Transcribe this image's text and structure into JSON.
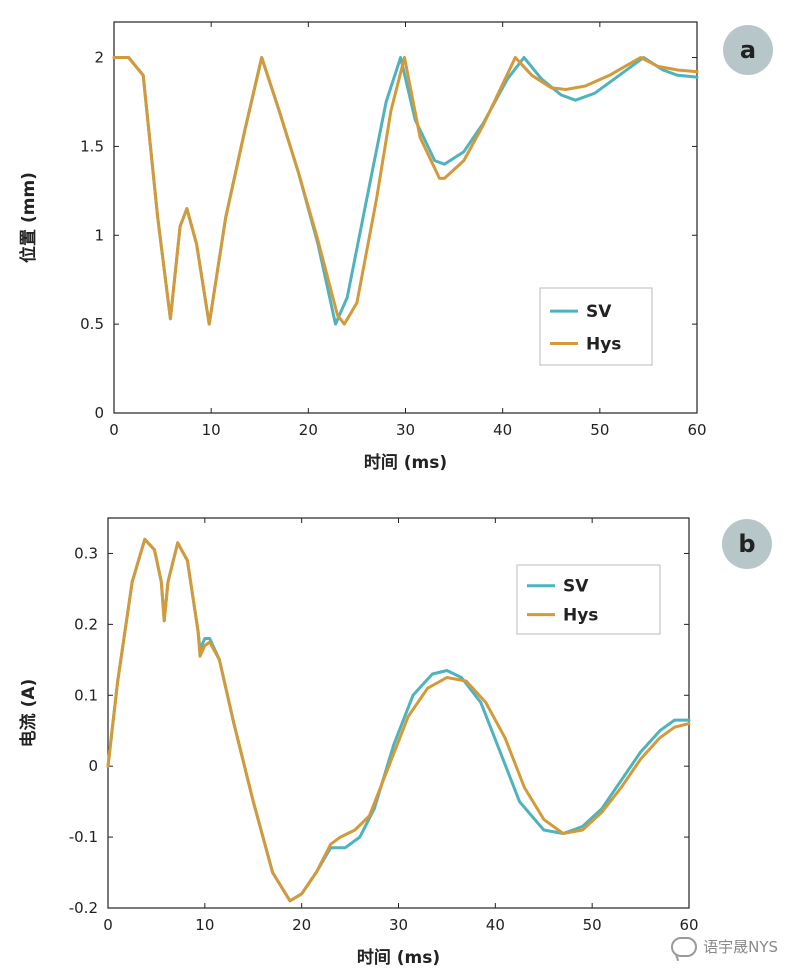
{
  "chart_data": [
    {
      "id": "a",
      "type": "line",
      "badge": "a",
      "xlabel": "时间 (ms)",
      "ylabel": "位置 (mm)",
      "xlim": [
        0,
        60
      ],
      "ylim": [
        0,
        2.2
      ],
      "xticks": [
        0,
        10,
        20,
        30,
        40,
        50,
        60
      ],
      "yticks": [
        0,
        0.5,
        1,
        1.5,
        2
      ],
      "ytick_labels": [
        "0",
        "0.5",
        "1",
        "1.5",
        "2"
      ],
      "grid": false,
      "legend_position": "lower-right",
      "series": [
        {
          "name": "SV",
          "color": "#4fb3bd",
          "points": [
            [
              0,
              2
            ],
            [
              1.5,
              2
            ],
            [
              3,
              1.9
            ],
            [
              4.5,
              1.1
            ],
            [
              5.8,
              0.53
            ],
            [
              6.8,
              1.05
            ],
            [
              7.5,
              1.15
            ],
            [
              8.5,
              0.95
            ],
            [
              9.8,
              0.5
            ],
            [
              11.5,
              1.1
            ],
            [
              13.5,
              1.6
            ],
            [
              15.2,
              2
            ],
            [
              17,
              1.7
            ],
            [
              19,
              1.35
            ],
            [
              21,
              0.95
            ],
            [
              22.8,
              0.5
            ],
            [
              24,
              0.65
            ],
            [
              26,
              1.2
            ],
            [
              28,
              1.75
            ],
            [
              29.5,
              2
            ],
            [
              31,
              1.65
            ],
            [
              33,
              1.42
            ],
            [
              34,
              1.4
            ],
            [
              36,
              1.47
            ],
            [
              38,
              1.63
            ],
            [
              40.5,
              1.88
            ],
            [
              42.2,
              2
            ],
            [
              44,
              1.88
            ],
            [
              46,
              1.79
            ],
            [
              47.5,
              1.76
            ],
            [
              49.5,
              1.8
            ],
            [
              52,
              1.9
            ],
            [
              54.5,
              2
            ],
            [
              56.5,
              1.93
            ],
            [
              58,
              1.9
            ],
            [
              60,
              1.89
            ]
          ]
        },
        {
          "name": "Hys",
          "color": "#d49a3a",
          "points": [
            [
              0,
              2
            ],
            [
              1.5,
              2
            ],
            [
              3,
              1.9
            ],
            [
              4.5,
              1.1
            ],
            [
              5.8,
              0.53
            ],
            [
              6.8,
              1.05
            ],
            [
              7.5,
              1.15
            ],
            [
              8.5,
              0.95
            ],
            [
              9.8,
              0.5
            ],
            [
              11.5,
              1.1
            ],
            [
              13.5,
              1.6
            ],
            [
              15.2,
              2
            ],
            [
              17,
              1.7
            ],
            [
              19,
              1.35
            ],
            [
              21,
              0.97
            ],
            [
              23,
              0.55
            ],
            [
              23.7,
              0.5
            ],
            [
              25,
              0.62
            ],
            [
              27,
              1.2
            ],
            [
              28.5,
              1.7
            ],
            [
              29.9,
              2
            ],
            [
              31.5,
              1.55
            ],
            [
              33.5,
              1.32
            ],
            [
              34,
              1.32
            ],
            [
              36,
              1.42
            ],
            [
              38,
              1.62
            ],
            [
              41.3,
              2
            ],
            [
              43,
              1.9
            ],
            [
              45,
              1.83
            ],
            [
              46.5,
              1.82
            ],
            [
              48.5,
              1.84
            ],
            [
              51,
              1.9
            ],
            [
              54.2,
              2
            ],
            [
              56,
              1.95
            ],
            [
              58,
              1.93
            ],
            [
              60,
              1.92
            ]
          ]
        }
      ]
    },
    {
      "id": "b",
      "type": "line",
      "badge": "b",
      "xlabel": "时间 (ms)",
      "ylabel": "电流 (A)",
      "xlim": [
        0,
        60
      ],
      "ylim": [
        -0.2,
        0.35
      ],
      "xticks": [
        0,
        10,
        20,
        30,
        40,
        50,
        60
      ],
      "yticks": [
        -0.2,
        -0.1,
        0,
        0.1,
        0.2,
        0.3
      ],
      "ytick_labels": [
        "-0.2",
        "-0.1",
        "0",
        "0.1",
        "0.2",
        "0.3"
      ],
      "grid": false,
      "legend_position": "upper-right",
      "series": [
        {
          "name": "SV",
          "color": "#4fb3bd",
          "points": [
            [
              0,
              0
            ],
            [
              1,
              0.12
            ],
            [
              2.5,
              0.26
            ],
            [
              3.8,
              0.32
            ],
            [
              4.8,
              0.305
            ],
            [
              5.5,
              0.26
            ],
            [
              5.8,
              0.205
            ],
            [
              6.2,
              0.26
            ],
            [
              7.2,
              0.315
            ],
            [
              8.2,
              0.29
            ],
            [
              9.3,
              0.19
            ],
            [
              9.5,
              0.165
            ],
            [
              10,
              0.18
            ],
            [
              10.5,
              0.18
            ],
            [
              11.5,
              0.15
            ],
            [
              13,
              0.06
            ],
            [
              15,
              -0.05
            ],
            [
              17,
              -0.15
            ],
            [
              18.8,
              -0.19
            ],
            [
              20,
              -0.18
            ],
            [
              21.5,
              -0.15
            ],
            [
              23,
              -0.115
            ],
            [
              24.5,
              -0.115
            ],
            [
              26,
              -0.1
            ],
            [
              27.5,
              -0.06
            ],
            [
              29.5,
              0.03
            ],
            [
              31.5,
              0.1
            ],
            [
              33.5,
              0.13
            ],
            [
              35,
              0.135
            ],
            [
              36.5,
              0.125
            ],
            [
              38.5,
              0.09
            ],
            [
              40.5,
              0.02
            ],
            [
              42.5,
              -0.05
            ],
            [
              45,
              -0.09
            ],
            [
              47,
              -0.095
            ],
            [
              49,
              -0.085
            ],
            [
              51,
              -0.06
            ],
            [
              53,
              -0.02
            ],
            [
              55,
              0.02
            ],
            [
              57,
              0.05
            ],
            [
              58.5,
              0.065
            ],
            [
              60,
              0.065
            ]
          ]
        },
        {
          "name": "Hys",
          "color": "#d49a3a",
          "points": [
            [
              0,
              0
            ],
            [
              1,
              0.12
            ],
            [
              2.5,
              0.26
            ],
            [
              3.8,
              0.32
            ],
            [
              4.8,
              0.305
            ],
            [
              5.5,
              0.26
            ],
            [
              5.8,
              0.205
            ],
            [
              6.2,
              0.26
            ],
            [
              7.2,
              0.315
            ],
            [
              8.2,
              0.29
            ],
            [
              9.3,
              0.19
            ],
            [
              9.5,
              0.155
            ],
            [
              10,
              0.17
            ],
            [
              10.5,
              0.175
            ],
            [
              11.5,
              0.15
            ],
            [
              13,
              0.06
            ],
            [
              15,
              -0.05
            ],
            [
              17,
              -0.15
            ],
            [
              18.8,
              -0.19
            ],
            [
              20,
              -0.18
            ],
            [
              21.5,
              -0.15
            ],
            [
              23,
              -0.11
            ],
            [
              24,
              -0.1
            ],
            [
              25.5,
              -0.09
            ],
            [
              27,
              -0.07
            ],
            [
              29,
              0
            ],
            [
              31,
              0.07
            ],
            [
              33,
              0.11
            ],
            [
              35,
              0.125
            ],
            [
              37,
              0.12
            ],
            [
              39,
              0.09
            ],
            [
              41,
              0.04
            ],
            [
              43,
              -0.03
            ],
            [
              45,
              -0.075
            ],
            [
              47,
              -0.095
            ],
            [
              49,
              -0.09
            ],
            [
              51,
              -0.065
            ],
            [
              53,
              -0.03
            ],
            [
              55,
              0.01
            ],
            [
              57,
              0.04
            ],
            [
              58.5,
              0.055
            ],
            [
              60,
              0.06
            ]
          ]
        }
      ]
    }
  ],
  "watermark": {
    "text": "语宇晟NYS",
    "icon": "wechat-icon"
  }
}
